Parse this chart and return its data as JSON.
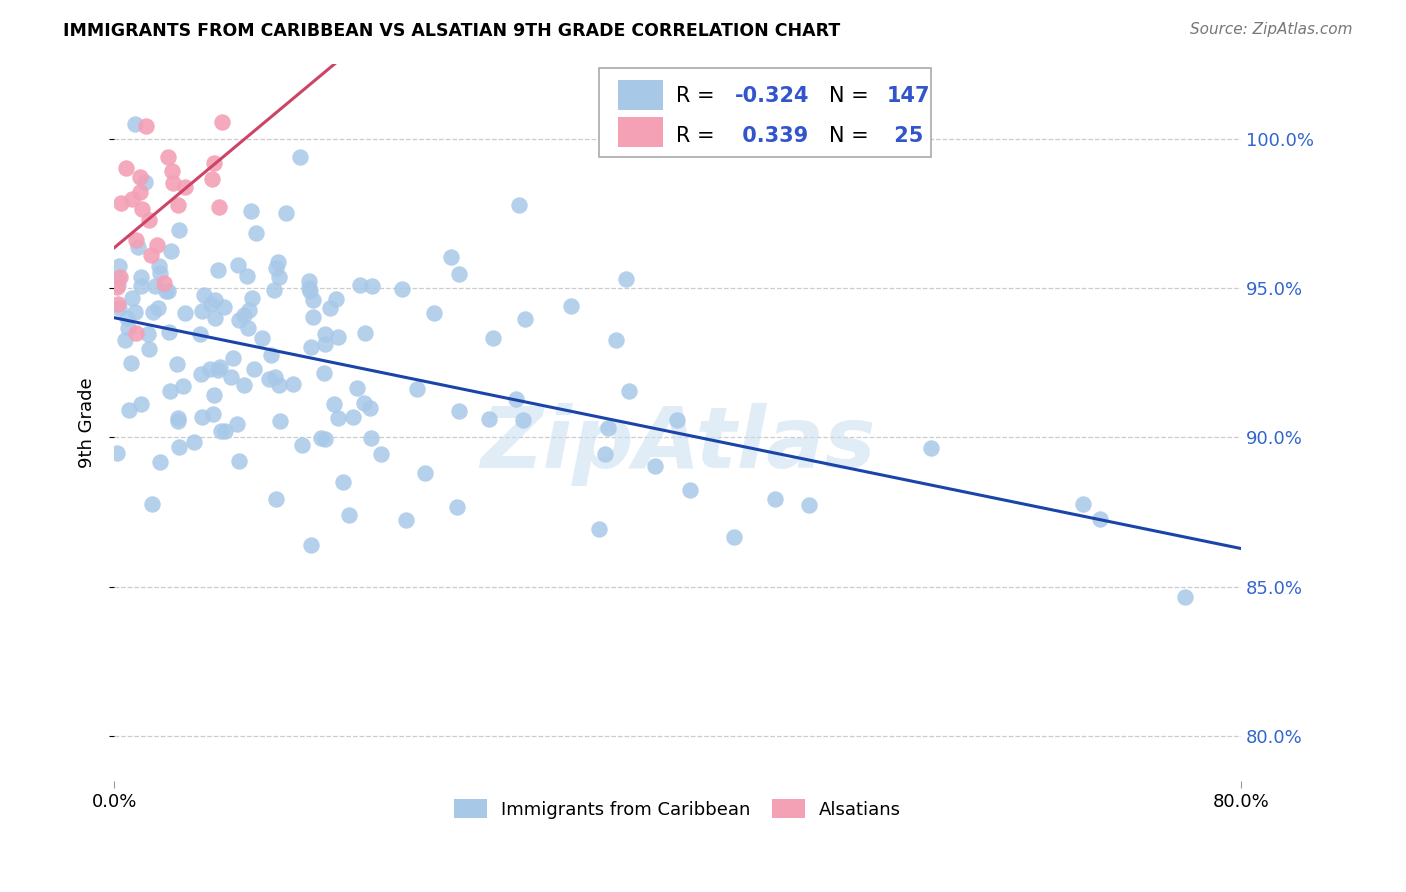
{
  "title": "IMMIGRANTS FROM CARIBBEAN VS ALSATIAN 9TH GRADE CORRELATION CHART",
  "source": "Source: ZipAtlas.com",
  "ylabel": "9th Grade",
  "ytick_labels": [
    "80.0%",
    "85.0%",
    "90.0%",
    "95.0%",
    "100.0%"
  ],
  "ytick_values": [
    0.8,
    0.85,
    0.9,
    0.95,
    1.0
  ],
  "xlim": [
    0.0,
    0.8
  ],
  "ylim": [
    0.785,
    1.025
  ],
  "blue_R": -0.324,
  "blue_N": 147,
  "pink_R": 0.339,
  "pink_N": 25,
  "blue_color": "#a8c8e8",
  "pink_color": "#f4a0b5",
  "blue_line_color": "#1a44aa",
  "pink_line_color": "#cc4466",
  "watermark": "ZipAtlas",
  "legend_label_blue": "Immigrants from Caribbean",
  "legend_label_pink": "Alsatians",
  "legend_R_color": "#3355cc",
  "legend_N_color": "#3355cc"
}
